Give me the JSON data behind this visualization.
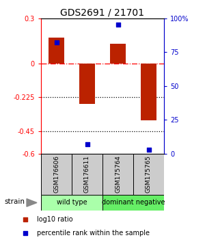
{
  "title": "GDS2691 / 21701",
  "samples": [
    "GSM176606",
    "GSM176611",
    "GSM175764",
    "GSM175765"
  ],
  "log10_ratio": [
    0.17,
    -0.27,
    0.13,
    -0.38
  ],
  "percentile_rank_pct": [
    82,
    7,
    95,
    3
  ],
  "bar_color": "#bb2200",
  "dot_color": "#0000cc",
  "groups": [
    {
      "label": "wild type",
      "span": [
        0,
        2
      ],
      "color": "#aaffaa"
    },
    {
      "label": "dominant negative",
      "span": [
        2,
        4
      ],
      "color": "#66ee66"
    }
  ],
  "ylim_left": [
    -0.6,
    0.3
  ],
  "ylim_right": [
    0,
    100
  ],
  "yticks_left": [
    0.3,
    0.0,
    -0.225,
    -0.45,
    -0.6
  ],
  "yticks_left_labels": [
    "0.3",
    "0",
    "-0.225",
    "-0.45",
    "-0.6"
  ],
  "yticks_right": [
    100,
    75,
    50,
    25,
    0
  ],
  "yticks_right_labels": [
    "100%",
    "75",
    "50",
    "25",
    "0"
  ],
  "hline_dotted": [
    -0.225,
    -0.45
  ],
  "background_color": "#ffffff",
  "strain_label": "strain",
  "legend_items": [
    {
      "color": "#bb2200",
      "label": "log10 ratio"
    },
    {
      "color": "#0000cc",
      "label": "percentile rank within the sample"
    }
  ]
}
